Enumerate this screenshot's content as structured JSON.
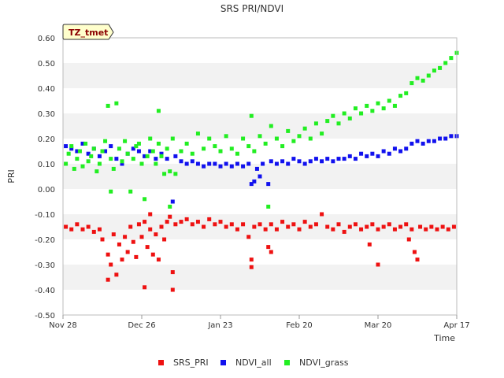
{
  "chart_data": {
    "type": "scatter",
    "title": "SRS PRI/NDVI",
    "xlabel": "Time",
    "ylabel": "PRI",
    "xlim": [
      0,
      140
    ],
    "ylim": [
      -0.5,
      0.6
    ],
    "grid": "horizontal bands",
    "legend_position": "bottom",
    "x_tick_labels": [
      {
        "label": "Nov 28",
        "day": 0
      },
      {
        "label": "Dec 26",
        "day": 28
      },
      {
        "label": "Jan 23",
        "day": 56
      },
      {
        "label": "Feb 20",
        "day": 84
      },
      {
        "label": "Mar 20",
        "day": 112
      },
      {
        "label": "Apr 17",
        "day": 140
      }
    ],
    "y_ticks": [
      -0.5,
      -0.4,
      -0.3,
      -0.2,
      -0.1,
      0.0,
      0.1,
      0.2,
      0.3,
      0.4,
      0.5,
      0.6
    ],
    "y_tick_labels": [
      "-0.50",
      "-0.40",
      "-0.30",
      "-0.20",
      "-0.10",
      "0.00",
      "0.10",
      "0.20",
      "0.30",
      "0.40",
      "0.50",
      "0.60"
    ],
    "annotation": "TZ_tmet",
    "x_unit": "days since Nov 28",
    "series": [
      {
        "name": "SRS_PRI",
        "color": "#ee1111",
        "points": [
          [
            1,
            -0.15
          ],
          [
            3,
            -0.16
          ],
          [
            5,
            -0.14
          ],
          [
            7,
            -0.16
          ],
          [
            9,
            -0.15
          ],
          [
            11,
            -0.17
          ],
          [
            13,
            -0.16
          ],
          [
            14,
            -0.2
          ],
          [
            16,
            -0.26
          ],
          [
            16,
            -0.36
          ],
          [
            17,
            -0.3
          ],
          [
            18,
            -0.18
          ],
          [
            19,
            -0.34
          ],
          [
            20,
            -0.22
          ],
          [
            21,
            -0.28
          ],
          [
            22,
            -0.19
          ],
          [
            23,
            -0.25
          ],
          [
            24,
            -0.15
          ],
          [
            25,
            -0.21
          ],
          [
            26,
            -0.27
          ],
          [
            27,
            -0.14
          ],
          [
            28,
            -0.19
          ],
          [
            29,
            -0.13
          ],
          [
            29,
            -0.39
          ],
          [
            30,
            -0.23
          ],
          [
            31,
            -0.16
          ],
          [
            31,
            -0.1
          ],
          [
            32,
            -0.26
          ],
          [
            33,
            -0.18
          ],
          [
            34,
            -0.28
          ],
          [
            35,
            -0.15
          ],
          [
            36,
            -0.2
          ],
          [
            37,
            -0.13
          ],
          [
            38,
            -0.11
          ],
          [
            39,
            -0.33
          ],
          [
            39,
            -0.4
          ],
          [
            40,
            -0.14
          ],
          [
            42,
            -0.13
          ],
          [
            44,
            -0.12
          ],
          [
            46,
            -0.14
          ],
          [
            48,
            -0.13
          ],
          [
            50,
            -0.15
          ],
          [
            52,
            -0.12
          ],
          [
            54,
            -0.14
          ],
          [
            56,
            -0.13
          ],
          [
            58,
            -0.15
          ],
          [
            60,
            -0.14
          ],
          [
            62,
            -0.16
          ],
          [
            64,
            -0.14
          ],
          [
            66,
            -0.19
          ],
          [
            67,
            -0.28
          ],
          [
            67,
            -0.31
          ],
          [
            68,
            -0.15
          ],
          [
            70,
            -0.14
          ],
          [
            72,
            -0.16
          ],
          [
            73,
            -0.23
          ],
          [
            74,
            -0.25
          ],
          [
            74,
            -0.14
          ],
          [
            76,
            -0.16
          ],
          [
            78,
            -0.13
          ],
          [
            80,
            -0.15
          ],
          [
            82,
            -0.14
          ],
          [
            84,
            -0.16
          ],
          [
            86,
            -0.13
          ],
          [
            88,
            -0.15
          ],
          [
            90,
            -0.14
          ],
          [
            92,
            -0.1
          ],
          [
            94,
            -0.15
          ],
          [
            96,
            -0.16
          ],
          [
            98,
            -0.14
          ],
          [
            100,
            -0.17
          ],
          [
            102,
            -0.15
          ],
          [
            104,
            -0.14
          ],
          [
            106,
            -0.16
          ],
          [
            108,
            -0.15
          ],
          [
            109,
            -0.22
          ],
          [
            110,
            -0.14
          ],
          [
            112,
            -0.16
          ],
          [
            112,
            -0.3
          ],
          [
            114,
            -0.15
          ],
          [
            116,
            -0.14
          ],
          [
            118,
            -0.16
          ],
          [
            120,
            -0.15
          ],
          [
            122,
            -0.14
          ],
          [
            123,
            -0.2
          ],
          [
            124,
            -0.16
          ],
          [
            125,
            -0.25
          ],
          [
            126,
            -0.28
          ],
          [
            127,
            -0.15
          ],
          [
            129,
            -0.16
          ],
          [
            131,
            -0.15
          ],
          [
            133,
            -0.16
          ],
          [
            135,
            -0.15
          ],
          [
            137,
            -0.16
          ],
          [
            139,
            -0.15
          ]
        ]
      },
      {
        "name": "NDVI_all",
        "color": "#1111ee",
        "points": [
          [
            1,
            0.17
          ],
          [
            3,
            0.16
          ],
          [
            5,
            0.15
          ],
          [
            7,
            0.18
          ],
          [
            9,
            0.14
          ],
          [
            11,
            0.16
          ],
          [
            13,
            0.13
          ],
          [
            15,
            0.15
          ],
          [
            17,
            0.17
          ],
          [
            19,
            0.12
          ],
          [
            21,
            0.1
          ],
          [
            23,
            0.14
          ],
          [
            25,
            0.16
          ],
          [
            27,
            0.15
          ],
          [
            29,
            0.13
          ],
          [
            31,
            0.15
          ],
          [
            33,
            0.12
          ],
          [
            35,
            0.14
          ],
          [
            37,
            0.12
          ],
          [
            39,
            -0.05
          ],
          [
            40,
            0.13
          ],
          [
            42,
            0.11
          ],
          [
            44,
            0.1
          ],
          [
            46,
            0.11
          ],
          [
            48,
            0.1
          ],
          [
            50,
            0.09
          ],
          [
            52,
            0.1
          ],
          [
            54,
            0.1
          ],
          [
            56,
            0.09
          ],
          [
            58,
            0.1
          ],
          [
            60,
            0.09
          ],
          [
            62,
            0.1
          ],
          [
            64,
            0.09
          ],
          [
            66,
            0.1
          ],
          [
            67,
            0.02
          ],
          [
            68,
            0.03
          ],
          [
            69,
            0.08
          ],
          [
            70,
            0.05
          ],
          [
            71,
            0.1
          ],
          [
            73,
            0.02
          ],
          [
            74,
            0.11
          ],
          [
            76,
            0.1
          ],
          [
            78,
            0.11
          ],
          [
            80,
            0.1
          ],
          [
            82,
            0.12
          ],
          [
            84,
            0.11
          ],
          [
            86,
            0.1
          ],
          [
            88,
            0.11
          ],
          [
            90,
            0.12
          ],
          [
            92,
            0.11
          ],
          [
            94,
            0.12
          ],
          [
            96,
            0.11
          ],
          [
            98,
            0.12
          ],
          [
            100,
            0.12
          ],
          [
            102,
            0.13
          ],
          [
            104,
            0.12
          ],
          [
            106,
            0.14
          ],
          [
            108,
            0.13
          ],
          [
            110,
            0.14
          ],
          [
            112,
            0.13
          ],
          [
            114,
            0.15
          ],
          [
            116,
            0.14
          ],
          [
            118,
            0.16
          ],
          [
            120,
            0.15
          ],
          [
            122,
            0.16
          ],
          [
            124,
            0.18
          ],
          [
            126,
            0.19
          ],
          [
            128,
            0.18
          ],
          [
            130,
            0.19
          ],
          [
            132,
            0.19
          ],
          [
            134,
            0.2
          ],
          [
            136,
            0.2
          ],
          [
            138,
            0.21
          ],
          [
            140,
            0.21
          ]
        ]
      },
      {
        "name": "NDVI_grass",
        "color": "#22ee22",
        "points": [
          [
            1,
            0.1
          ],
          [
            2,
            0.14
          ],
          [
            3,
            0.17
          ],
          [
            4,
            0.08
          ],
          [
            5,
            0.12
          ],
          [
            6,
            0.15
          ],
          [
            7,
            0.09
          ],
          [
            8,
            0.18
          ],
          [
            9,
            0.11
          ],
          [
            10,
            0.13
          ],
          [
            11,
            0.16
          ],
          [
            12,
            0.07
          ],
          [
            13,
            0.1
          ],
          [
            14,
            0.15
          ],
          [
            15,
            0.19
          ],
          [
            16,
            0.33
          ],
          [
            17,
            0.12
          ],
          [
            17,
            -0.01
          ],
          [
            18,
            0.08
          ],
          [
            19,
            0.34
          ],
          [
            20,
            0.16
          ],
          [
            21,
            0.11
          ],
          [
            22,
            0.19
          ],
          [
            23,
            0.14
          ],
          [
            24,
            -0.01
          ],
          [
            25,
            0.12
          ],
          [
            26,
            0.17
          ],
          [
            27,
            0.18
          ],
          [
            28,
            0.1
          ],
          [
            29,
            -0.04
          ],
          [
            30,
            0.13
          ],
          [
            31,
            0.2
          ],
          [
            32,
            0.15
          ],
          [
            33,
            0.1
          ],
          [
            34,
            0.18
          ],
          [
            34,
            0.31
          ],
          [
            35,
            0.13
          ],
          [
            36,
            0.06
          ],
          [
            37,
            0.16
          ],
          [
            38,
            -0.07
          ],
          [
            38,
            0.07
          ],
          [
            39,
            0.2
          ],
          [
            40,
            0.06
          ],
          [
            42,
            0.15
          ],
          [
            44,
            0.18
          ],
          [
            46,
            0.14
          ],
          [
            48,
            0.22
          ],
          [
            50,
            0.16
          ],
          [
            52,
            0.2
          ],
          [
            54,
            0.17
          ],
          [
            56,
            0.15
          ],
          [
            58,
            0.21
          ],
          [
            60,
            0.16
          ],
          [
            62,
            0.14
          ],
          [
            64,
            0.2
          ],
          [
            66,
            0.17
          ],
          [
            67,
            0.29
          ],
          [
            68,
            0.15
          ],
          [
            70,
            0.21
          ],
          [
            72,
            0.18
          ],
          [
            73,
            -0.07
          ],
          [
            74,
            0.25
          ],
          [
            76,
            0.2
          ],
          [
            78,
            0.17
          ],
          [
            80,
            0.23
          ],
          [
            82,
            0.19
          ],
          [
            84,
            0.21
          ],
          [
            86,
            0.24
          ],
          [
            88,
            0.2
          ],
          [
            90,
            0.26
          ],
          [
            92,
            0.22
          ],
          [
            94,
            0.27
          ],
          [
            96,
            0.29
          ],
          [
            98,
            0.26
          ],
          [
            100,
            0.3
          ],
          [
            102,
            0.28
          ],
          [
            104,
            0.32
          ],
          [
            106,
            0.3
          ],
          [
            108,
            0.33
          ],
          [
            110,
            0.31
          ],
          [
            112,
            0.34
          ],
          [
            114,
            0.32
          ],
          [
            116,
            0.35
          ],
          [
            118,
            0.33
          ],
          [
            120,
            0.37
          ],
          [
            122,
            0.38
          ],
          [
            124,
            0.42
          ],
          [
            126,
            0.44
          ],
          [
            128,
            0.43
          ],
          [
            130,
            0.45
          ],
          [
            132,
            0.47
          ],
          [
            134,
            0.48
          ],
          [
            136,
            0.5
          ],
          [
            138,
            0.52
          ],
          [
            140,
            0.54
          ]
        ]
      }
    ]
  }
}
